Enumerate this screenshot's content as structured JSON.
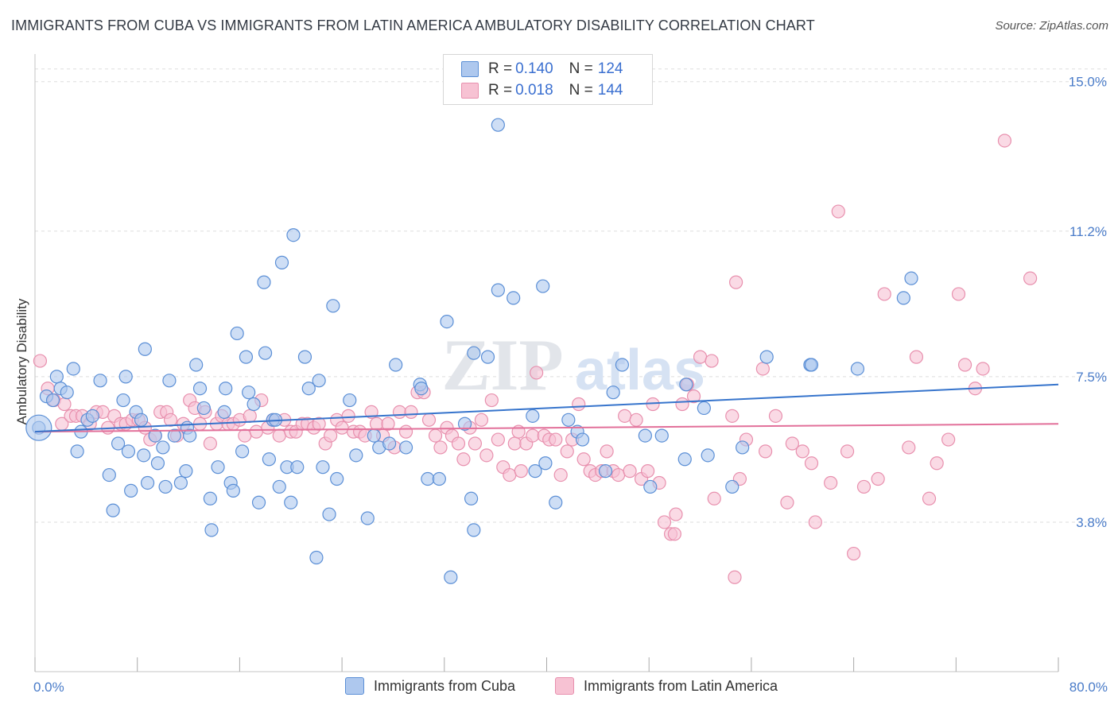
{
  "title": "IMMIGRANTS FROM CUBA VS IMMIGRANTS FROM LATIN AMERICA AMBULATORY DISABILITY CORRELATION CHART",
  "source": "Source: ZipAtlas.com",
  "watermark": {
    "zip": "ZIP",
    "atlas": "atlas"
  },
  "legend": {
    "rows": [
      {
        "r_label": "R =",
        "r_value": "0.140",
        "n_label": "N =",
        "n_value": "124"
      },
      {
        "r_label": "R =",
        "r_value": "0.018",
        "n_label": "N =",
        "n_value": "144"
      }
    ]
  },
  "bottom_legend": [
    "Immigrants from Cuba",
    "Immigrants from Latin America"
  ],
  "colors": {
    "cuba_fill": "#aec8ee",
    "cuba_stroke": "#5b8fd6",
    "cuba_line": "#3674cc",
    "latam_fill": "#f7c2d3",
    "latam_stroke": "#e890ae",
    "latam_line": "#e2709a",
    "tick_text": "#4a7cc9",
    "grid": "#dddddd"
  },
  "chart_data": {
    "type": "scatter",
    "title": "IMMIGRANTS FROM CUBA VS IMMIGRANTS FROM LATIN AMERICA AMBULATORY DISABILITY CORRELATION CHART",
    "xlabel": "",
    "ylabel": "Ambulatory Disability",
    "xlim": [
      0,
      80
    ],
    "ylim": [
      0,
      15.5
    ],
    "x_tick_labels": [
      "0.0%",
      "80.0%"
    ],
    "y_ticks": [
      3.8,
      7.5,
      11.2,
      15.0
    ],
    "y_tick_labels": [
      "3.8%",
      "7.5%",
      "11.2%",
      "15.0%"
    ],
    "grid": "horizontal dashed",
    "legend_position": "top-center",
    "series": [
      {
        "name": "Immigrants from Cuba",
        "R": 0.14,
        "N": 124,
        "trend": {
          "x": [
            0,
            80
          ],
          "y": [
            6.1,
            7.3
          ]
        },
        "points": [
          [
            0.3,
            6.2
          ],
          [
            0.9,
            7.0
          ],
          [
            1.4,
            6.9
          ],
          [
            1.7,
            7.5
          ],
          [
            2.0,
            7.2
          ],
          [
            2.5,
            7.1
          ],
          [
            3.0,
            7.7
          ],
          [
            3.3,
            5.6
          ],
          [
            3.6,
            6.1
          ],
          [
            4.1,
            6.4
          ],
          [
            4.5,
            6.5
          ],
          [
            5.1,
            7.4
          ],
          [
            5.8,
            5.0
          ],
          [
            6.1,
            4.1
          ],
          [
            6.5,
            5.8
          ],
          [
            6.9,
            6.9
          ],
          [
            7.1,
            7.5
          ],
          [
            7.3,
            5.6
          ],
          [
            7.5,
            4.6
          ],
          [
            7.9,
            6.6
          ],
          [
            8.3,
            6.4
          ],
          [
            8.5,
            5.5
          ],
          [
            8.6,
            8.2
          ],
          [
            8.8,
            4.8
          ],
          [
            9.4,
            6.0
          ],
          [
            9.6,
            5.3
          ],
          [
            10.0,
            5.7
          ],
          [
            10.2,
            4.7
          ],
          [
            10.5,
            7.4
          ],
          [
            10.9,
            6.0
          ],
          [
            11.4,
            4.8
          ],
          [
            11.8,
            5.1
          ],
          [
            11.9,
            6.2
          ],
          [
            12.1,
            6.0
          ],
          [
            12.6,
            7.8
          ],
          [
            12.9,
            7.2
          ],
          [
            13.2,
            6.7
          ],
          [
            13.7,
            4.4
          ],
          [
            13.8,
            3.6
          ],
          [
            14.3,
            5.2
          ],
          [
            14.8,
            6.6
          ],
          [
            14.9,
            7.2
          ],
          [
            15.3,
            4.8
          ],
          [
            15.5,
            4.6
          ],
          [
            15.8,
            8.6
          ],
          [
            16.2,
            5.6
          ],
          [
            16.5,
            8.0
          ],
          [
            16.7,
            7.1
          ],
          [
            17.1,
            6.8
          ],
          [
            17.5,
            4.3
          ],
          [
            17.9,
            9.9
          ],
          [
            18.0,
            8.1
          ],
          [
            18.3,
            5.4
          ],
          [
            18.6,
            6.4
          ],
          [
            18.8,
            6.4
          ],
          [
            19.1,
            4.7
          ],
          [
            19.3,
            10.4
          ],
          [
            19.7,
            5.2
          ],
          [
            20.0,
            4.3
          ],
          [
            20.2,
            11.1
          ],
          [
            20.5,
            5.2
          ],
          [
            21.1,
            8.0
          ],
          [
            21.4,
            7.2
          ],
          [
            22.0,
            2.9
          ],
          [
            22.2,
            7.4
          ],
          [
            22.5,
            5.2
          ],
          [
            23.0,
            4.0
          ],
          [
            23.3,
            9.3
          ],
          [
            23.6,
            4.9
          ],
          [
            24.6,
            6.9
          ],
          [
            25.1,
            5.5
          ],
          [
            26.0,
            3.9
          ],
          [
            26.5,
            6.0
          ],
          [
            26.9,
            5.7
          ],
          [
            27.7,
            5.8
          ],
          [
            28.2,
            7.8
          ],
          [
            29.0,
            5.7
          ],
          [
            30.1,
            7.3
          ],
          [
            30.2,
            7.2
          ],
          [
            30.7,
            4.9
          ],
          [
            31.6,
            4.9
          ],
          [
            32.2,
            8.9
          ],
          [
            32.5,
            2.4
          ],
          [
            33.6,
            6.3
          ],
          [
            34.1,
            4.4
          ],
          [
            34.3,
            3.6
          ],
          [
            34.3,
            8.1
          ],
          [
            35.4,
            8.0
          ],
          [
            36.2,
            13.9
          ],
          [
            36.2,
            9.7
          ],
          [
            37.4,
            9.5
          ],
          [
            38.9,
            6.5
          ],
          [
            39.1,
            5.1
          ],
          [
            39.7,
            9.8
          ],
          [
            39.9,
            5.3
          ],
          [
            40.7,
            4.3
          ],
          [
            41.7,
            6.4
          ],
          [
            42.4,
            6.1
          ],
          [
            42.8,
            5.9
          ],
          [
            44.6,
            5.1
          ],
          [
            45.2,
            7.1
          ],
          [
            45.9,
            7.8
          ],
          [
            47.7,
            6.0
          ],
          [
            48.1,
            4.7
          ],
          [
            49.0,
            6.0
          ],
          [
            50.8,
            5.4
          ],
          [
            50.9,
            7.3
          ],
          [
            52.3,
            6.7
          ],
          [
            52.6,
            5.5
          ],
          [
            54.5,
            4.7
          ],
          [
            55.3,
            5.7
          ],
          [
            57.2,
            8.0
          ],
          [
            60.6,
            7.8
          ],
          [
            60.7,
            7.8
          ],
          [
            64.3,
            7.7
          ],
          [
            67.9,
            9.5
          ],
          [
            68.5,
            10.0
          ]
        ]
      },
      {
        "name": "Immigrants from Latin America",
        "R": 0.018,
        "N": 144,
        "trend": {
          "x": [
            0,
            80
          ],
          "y": [
            6.1,
            6.3
          ]
        },
        "points": [
          [
            0.4,
            7.9
          ],
          [
            1.0,
            7.2
          ],
          [
            1.5,
            6.9
          ],
          [
            2.1,
            6.3
          ],
          [
            2.3,
            6.8
          ],
          [
            2.8,
            6.5
          ],
          [
            3.2,
            6.5
          ],
          [
            3.7,
            6.5
          ],
          [
            4.3,
            6.3
          ],
          [
            4.8,
            6.6
          ],
          [
            5.3,
            6.6
          ],
          [
            5.7,
            6.2
          ],
          [
            6.2,
            6.5
          ],
          [
            6.7,
            6.3
          ],
          [
            7.1,
            6.3
          ],
          [
            7.6,
            6.4
          ],
          [
            8.1,
            6.4
          ],
          [
            8.6,
            6.2
          ],
          [
            9.0,
            5.9
          ],
          [
            9.4,
            6.0
          ],
          [
            9.8,
            6.6
          ],
          [
            10.3,
            6.6
          ],
          [
            10.6,
            6.4
          ],
          [
            11.1,
            6.0
          ],
          [
            11.6,
            6.3
          ],
          [
            12.1,
            6.9
          ],
          [
            12.5,
            6.7
          ],
          [
            12.9,
            6.3
          ],
          [
            13.3,
            6.6
          ],
          [
            13.7,
            5.8
          ],
          [
            14.2,
            6.3
          ],
          [
            14.6,
            6.5
          ],
          [
            15.1,
            6.3
          ],
          [
            15.5,
            6.3
          ],
          [
            16.0,
            6.4
          ],
          [
            16.4,
            6.0
          ],
          [
            16.8,
            6.5
          ],
          [
            17.3,
            6.1
          ],
          [
            17.7,
            6.9
          ],
          [
            18.2,
            6.2
          ],
          [
            18.6,
            6.4
          ],
          [
            19.1,
            6.0
          ],
          [
            19.5,
            6.4
          ],
          [
            20.0,
            6.1
          ],
          [
            20.4,
            6.1
          ],
          [
            20.9,
            6.3
          ],
          [
            21.3,
            6.3
          ],
          [
            21.8,
            6.2
          ],
          [
            22.2,
            6.3
          ],
          [
            22.7,
            5.8
          ],
          [
            23.1,
            6.0
          ],
          [
            23.6,
            6.4
          ],
          [
            24.0,
            6.2
          ],
          [
            24.5,
            6.5
          ],
          [
            24.9,
            6.1
          ],
          [
            25.4,
            6.1
          ],
          [
            25.8,
            6.0
          ],
          [
            26.3,
            6.6
          ],
          [
            26.7,
            6.3
          ],
          [
            27.2,
            6.0
          ],
          [
            27.6,
            6.3
          ],
          [
            28.1,
            5.7
          ],
          [
            28.5,
            6.6
          ],
          [
            29.0,
            6.1
          ],
          [
            29.4,
            6.6
          ],
          [
            29.9,
            7.1
          ],
          [
            30.4,
            7.1
          ],
          [
            30.8,
            6.4
          ],
          [
            31.3,
            6.0
          ],
          [
            31.7,
            5.7
          ],
          [
            32.2,
            6.2
          ],
          [
            32.6,
            6.0
          ],
          [
            33.1,
            5.8
          ],
          [
            33.5,
            5.4
          ],
          [
            34.0,
            6.2
          ],
          [
            34.4,
            5.8
          ],
          [
            34.9,
            6.4
          ],
          [
            35.3,
            5.5
          ],
          [
            35.7,
            6.9
          ],
          [
            36.2,
            5.9
          ],
          [
            36.6,
            5.2
          ],
          [
            37.1,
            5.0
          ],
          [
            37.5,
            5.8
          ],
          [
            38.0,
            5.1
          ],
          [
            38.4,
            5.8
          ],
          [
            38.9,
            6.0
          ],
          [
            39.2,
            7.6
          ],
          [
            39.8,
            6.0
          ],
          [
            40.2,
            5.9
          ],
          [
            40.7,
            5.9
          ],
          [
            41.1,
            5.0
          ],
          [
            41.6,
            5.6
          ],
          [
            42.0,
            5.9
          ],
          [
            42.5,
            6.8
          ],
          [
            42.9,
            5.4
          ],
          [
            43.4,
            5.1
          ],
          [
            43.8,
            5.0
          ],
          [
            44.3,
            5.1
          ],
          [
            44.7,
            5.6
          ],
          [
            45.2,
            5.1
          ],
          [
            45.6,
            5.0
          ],
          [
            46.1,
            6.5
          ],
          [
            46.5,
            5.1
          ],
          [
            47.0,
            6.4
          ],
          [
            47.4,
            4.9
          ],
          [
            47.9,
            5.1
          ],
          [
            48.3,
            6.8
          ],
          [
            48.8,
            4.8
          ],
          [
            49.2,
            3.8
          ],
          [
            49.7,
            3.5
          ],
          [
            50.1,
            4.0
          ],
          [
            50.6,
            6.8
          ],
          [
            51.0,
            7.3
          ],
          [
            51.5,
            7.0
          ],
          [
            52.0,
            8.0
          ],
          [
            52.9,
            7.9
          ],
          [
            53.1,
            4.4
          ],
          [
            54.5,
            6.5
          ],
          [
            54.8,
            9.9
          ],
          [
            55.1,
            4.9
          ],
          [
            55.6,
            5.9
          ],
          [
            56.9,
            7.7
          ],
          [
            57.1,
            5.6
          ],
          [
            57.9,
            6.5
          ],
          [
            58.8,
            4.3
          ],
          [
            59.2,
            5.8
          ],
          [
            60.0,
            5.6
          ],
          [
            60.7,
            5.3
          ],
          [
            61.0,
            3.8
          ],
          [
            62.2,
            4.8
          ],
          [
            62.8,
            11.7
          ],
          [
            63.5,
            5.6
          ],
          [
            64.0,
            3.0
          ],
          [
            64.8,
            4.7
          ],
          [
            65.9,
            4.9
          ],
          [
            66.4,
            9.6
          ],
          [
            68.3,
            5.7
          ],
          [
            68.9,
            8.0
          ],
          [
            69.9,
            4.4
          ],
          [
            70.5,
            5.3
          ],
          [
            71.4,
            5.9
          ],
          [
            72.2,
            9.6
          ],
          [
            72.7,
            7.8
          ],
          [
            73.5,
            7.2
          ],
          [
            74.1,
            7.7
          ],
          [
            75.8,
            13.5
          ],
          [
            77.8,
            10.0
          ],
          [
            54.7,
            2.4
          ],
          [
            50.0,
            3.5
          ],
          [
            37.8,
            6.1
          ]
        ]
      }
    ]
  }
}
